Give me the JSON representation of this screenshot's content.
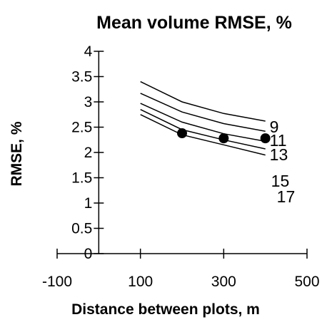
{
  "chart_data": {
    "type": "line",
    "title": "Mean volume RMSE, %",
    "xlabel": "Distance between plots, m",
    "ylabel": "RMSE, %",
    "xlim": [
      -100,
      500
    ],
    "ylim": [
      0,
      4
    ],
    "x_ticks": [
      -100,
      100,
      300,
      500
    ],
    "x_tick_labels": [
      "-100",
      "100",
      "300",
      "500"
    ],
    "y_ticks": [
      0,
      0.5,
      1,
      1.5,
      2,
      2.5,
      3,
      3.5,
      4
    ],
    "y_tick_labels": [
      "0",
      "0.5",
      "1",
      "1.5",
      "2",
      "2.5",
      "3",
      "3.5",
      "4"
    ],
    "grid": false,
    "legend": "none",
    "series": [
      {
        "name": "9",
        "x": [
          100,
          200,
          300,
          400
        ],
        "y": [
          3.4,
          3.0,
          2.77,
          2.62
        ]
      },
      {
        "name": "11",
        "x": [
          100,
          200,
          300,
          400
        ],
        "y": [
          3.17,
          2.8,
          2.57,
          2.42
        ]
      },
      {
        "name": "13",
        "x": [
          100,
          200,
          300,
          400
        ],
        "y": [
          2.97,
          2.6,
          2.37,
          2.22
        ]
      },
      {
        "name": "15",
        "x": [
          100,
          200,
          300,
          400
        ],
        "y": [
          2.85,
          2.45,
          2.25,
          2.07
        ]
      },
      {
        "name": "17",
        "x": [
          100,
          200,
          300,
          400
        ],
        "y": [
          2.75,
          2.35,
          2.15,
          1.95
        ]
      }
    ],
    "markers": {
      "x": [
        200,
        300,
        400
      ],
      "y": [
        2.38,
        2.28,
        2.28
      ]
    }
  },
  "colors": {
    "line": "#000000",
    "marker": "#000000",
    "background": "#ffffff"
  }
}
